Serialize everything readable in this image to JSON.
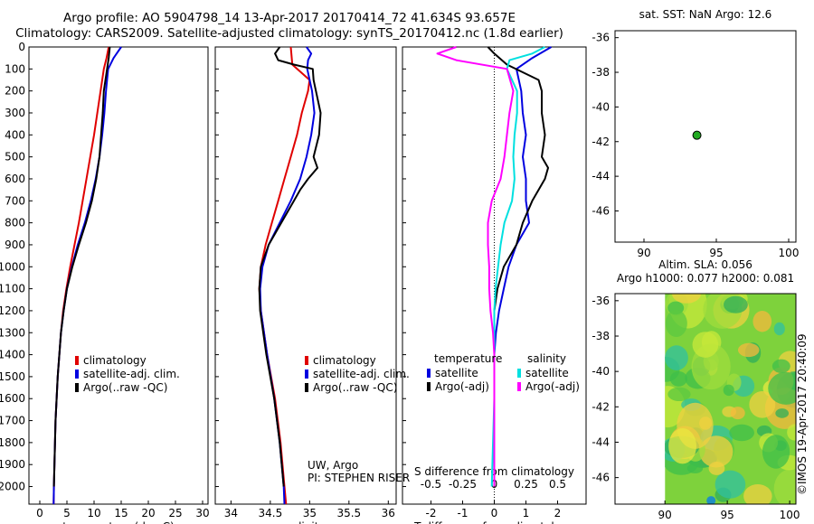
{
  "header": {
    "line1": "Argo profile: AO 5904798_14 13-Apr-2017 20170414_72 41.634S 93.657E",
    "line2": "Climatology: CARS2009. Satellite-adjusted climatology: synTS_20170412.nc (1.8d earlier)"
  },
  "credit": "©IMOS 19-Apr-2017 20:40:09",
  "colors": {
    "climatology": "#e00000",
    "satellite": "#0000e0",
    "argo": "#000000",
    "sat_salinity": "#00e0e0",
    "argo_salinity": "#ff00ff",
    "marker": "#22aa22"
  },
  "chart_data": [
    {
      "id": "temperature",
      "type": "line",
      "xlabel": "temperature (deg C)",
      "ylabel": "",
      "xlim": [
        -2,
        31
      ],
      "ylim": [
        2080,
        0
      ],
      "xticks": [
        "0",
        "5",
        "10",
        "15",
        "20",
        "25",
        "30"
      ],
      "yticks": [
        "0",
        "100",
        "200",
        "300",
        "400",
        "500",
        "600",
        "700",
        "800",
        "900",
        "1000",
        "1100",
        "1200",
        "1300",
        "1400",
        "1500",
        "1600",
        "1700",
        "1800",
        "1900",
        "2000"
      ],
      "legend": [
        "climatology",
        "satellite-adj. clim.",
        "Argo(..raw -QC)"
      ],
      "series": [
        {
          "name": "climatology",
          "depth": [
            0,
            50,
            100,
            200,
            300,
            400,
            500,
            600,
            700,
            800,
            900,
            1000,
            1100,
            1200,
            1300,
            1400,
            1500,
            1600,
            1700,
            1800,
            1900,
            2000,
            2080
          ],
          "values": [
            12.7,
            12.3,
            11.8,
            11.2,
            10.6,
            10.0,
            9.3,
            8.6,
            7.9,
            7.2,
            6.4,
            5.6,
            4.9,
            4.3,
            3.9,
            3.6,
            3.3,
            3.1,
            2.9,
            2.8,
            2.7,
            2.6,
            2.55
          ]
        },
        {
          "name": "satellite-adj. clim.",
          "depth": [
            0,
            50,
            100,
            200,
            300,
            400,
            500,
            600,
            700,
            800,
            900,
            1000,
            1100,
            1200,
            1300,
            1400,
            1500,
            1600,
            1700,
            1800,
            1900,
            2000,
            2080
          ],
          "values": [
            15.0,
            13.6,
            12.6,
            12.2,
            11.9,
            11.5,
            11.0,
            10.3,
            9.4,
            8.3,
            7.0,
            5.9,
            5.0,
            4.4,
            3.9,
            3.6,
            3.3,
            3.1,
            2.9,
            2.8,
            2.7,
            2.6,
            2.55
          ]
        },
        {
          "name": "Argo(..raw -QC)",
          "depth": [
            0,
            50,
            100,
            200,
            300,
            400,
            500,
            600,
            700,
            800,
            900,
            1000,
            1100,
            1200,
            1300,
            1400,
            1500,
            1600,
            1700,
            1800,
            1900,
            2000
          ],
          "values": [
            12.9,
            12.7,
            12.4,
            11.8,
            11.6,
            11.3,
            11.0,
            10.4,
            9.6,
            8.5,
            7.2,
            6.0,
            5.0,
            4.4,
            3.9,
            3.6,
            3.3,
            3.1,
            2.9,
            2.8,
            2.7,
            2.6
          ]
        }
      ]
    },
    {
      "id": "salinity",
      "type": "line",
      "xlabel": "salinity",
      "ylabel": "",
      "xlim": [
        33.8,
        36.1
      ],
      "ylim": [
        2080,
        0
      ],
      "xticks": [
        "34",
        "34.5",
        "35",
        "35.5",
        "36"
      ],
      "legend": [
        "climatology",
        "satellite-adj. clim.",
        "Argo(..raw -QC)"
      ],
      "annotation": [
        "UW, Argo",
        "PI: STEPHEN RISER"
      ],
      "series": [
        {
          "name": "climatology",
          "depth": [
            0,
            80,
            150,
            200,
            300,
            400,
            500,
            600,
            700,
            800,
            900,
            1000,
            1100,
            1200,
            1400,
            1600,
            1800,
            2000,
            2080
          ],
          "values": [
            34.76,
            34.78,
            35.0,
            34.98,
            34.9,
            34.84,
            34.76,
            34.68,
            34.6,
            34.52,
            34.44,
            34.38,
            34.36,
            34.38,
            34.46,
            34.56,
            34.63,
            34.68,
            34.7
          ]
        },
        {
          "name": "satellite-adj. clim.",
          "depth": [
            0,
            30,
            60,
            100,
            200,
            300,
            400,
            500,
            600,
            700,
            800,
            900,
            1000,
            1100,
            1200,
            1400,
            1600,
            1800,
            2000,
            2080
          ],
          "values": [
            34.96,
            35.02,
            34.98,
            34.97,
            35.03,
            35.06,
            35.02,
            34.96,
            34.88,
            34.76,
            34.62,
            34.48,
            34.4,
            34.37,
            34.38,
            34.46,
            34.55,
            34.62,
            34.67,
            34.68
          ]
        },
        {
          "name": "Argo(..raw -QC)",
          "depth": [
            0,
            30,
            60,
            80,
            100,
            150,
            200,
            300,
            400,
            500,
            550,
            600,
            650,
            700,
            800,
            900,
            1000,
            1100,
            1200,
            1400,
            1600,
            1800,
            2000
          ],
          "values": [
            34.62,
            34.56,
            34.6,
            34.8,
            35.04,
            35.05,
            35.08,
            35.14,
            35.12,
            35.05,
            35.1,
            34.98,
            34.88,
            34.8,
            34.64,
            34.48,
            34.38,
            34.36,
            34.37,
            34.45,
            34.55,
            34.62,
            34.67
          ]
        }
      ]
    },
    {
      "id": "difference",
      "type": "line",
      "xlabel": "T difference from climatology",
      "xlabel2": "S difference from climatology",
      "xlim": [
        -2.9,
        2.9
      ],
      "ylim": [
        2080,
        0
      ],
      "xticks": [
        "-2",
        "-1",
        "0",
        "1",
        "2"
      ],
      "xticks2": [
        "-0.5",
        "-0.25",
        "0",
        "0.25",
        "0.5"
      ],
      "legend_left_title": "temperature",
      "legend_right_title": "salinity",
      "legend": [
        "satellite",
        "Argo(-adj)",
        "satellite",
        "Argo(-adj)"
      ],
      "series": [
        {
          "name": "satellite",
          "variable": "temperature",
          "depth": [
            0,
            50,
            100,
            200,
            300,
            400,
            500,
            600,
            700,
            800,
            900,
            1000,
            1100,
            1200,
            1300,
            1400,
            1600,
            1800,
            2000
          ],
          "values": [
            1.8,
            1.2,
            0.7,
            0.85,
            0.9,
            1.0,
            0.9,
            1.0,
            1.0,
            1.1,
            0.7,
            0.45,
            0.3,
            0.15,
            0.05,
            0.0,
            0.0,
            0.0,
            0.0
          ]
        },
        {
          "name": "Argo(-adj)",
          "variable": "temperature",
          "depth": [
            0,
            30,
            80,
            150,
            200,
            300,
            400,
            500,
            550,
            600,
            700,
            800,
            900,
            1000,
            1100,
            1200,
            1300,
            1400,
            1600,
            1800,
            2000
          ],
          "values": [
            -0.2,
            0.0,
            0.4,
            1.4,
            1.5,
            1.5,
            1.6,
            1.5,
            1.7,
            1.6,
            1.2,
            0.9,
            0.7,
            0.3,
            0.1,
            0.0,
            0.0,
            0.0,
            0.0,
            0.0,
            0.0
          ]
        },
        {
          "name": "satellite",
          "variable": "salinity",
          "depth": [
            0,
            30,
            60,
            100,
            200,
            300,
            400,
            500,
            600,
            700,
            800,
            900,
            1000,
            1100,
            1200,
            1300,
            1400,
            1600,
            1800,
            2000
          ],
          "values": [
            0.4,
            0.3,
            0.12,
            0.1,
            0.18,
            0.18,
            0.16,
            0.15,
            0.16,
            0.14,
            0.08,
            0.05,
            0.03,
            0.01,
            0.0,
            0.0,
            0.0,
            0.0,
            -0.01,
            -0.02
          ]
        },
        {
          "name": "Argo(-adj)",
          "variable": "salinity",
          "depth": [
            0,
            30,
            60,
            100,
            200,
            300,
            400,
            500,
            600,
            700,
            800,
            900,
            1000,
            1100,
            1200,
            1300,
            1400,
            1600,
            1800,
            2000
          ],
          "values": [
            -0.3,
            -0.45,
            -0.3,
            0.1,
            0.15,
            0.12,
            0.1,
            0.08,
            0.05,
            -0.02,
            -0.05,
            -0.05,
            -0.04,
            -0.04,
            -0.03,
            -0.01,
            0.0,
            0.0,
            0.0,
            0.0
          ]
        }
      ]
    },
    {
      "id": "location",
      "type": "scatter",
      "title": "sat. SST: NaN Argo: 12.6",
      "xlim": [
        88,
        100.5
      ],
      "ylim": [
        -47.8,
        -35.6
      ],
      "xticks": [
        "90",
        "95",
        "100"
      ],
      "yticks": [
        "-36",
        "-38",
        "-40",
        "-42",
        "-44",
        "-46"
      ],
      "points": [
        {
          "x": 93.66,
          "y": -41.63
        }
      ]
    },
    {
      "id": "sla",
      "type": "heatmap",
      "title": [
        "Altim. SLA: 0.056",
        "Argo h1000: 0.077 h2000: 0.081"
      ],
      "xlim": [
        86,
        100.5
      ],
      "ylim": [
        -47.5,
        -35.6
      ],
      "xticks": [
        "90",
        "95",
        "100"
      ],
      "yticks": [
        "-36",
        "-38",
        "-40",
        "-42",
        "-44",
        "-46"
      ],
      "data_xrange": [
        90,
        100.5
      ]
    }
  ]
}
